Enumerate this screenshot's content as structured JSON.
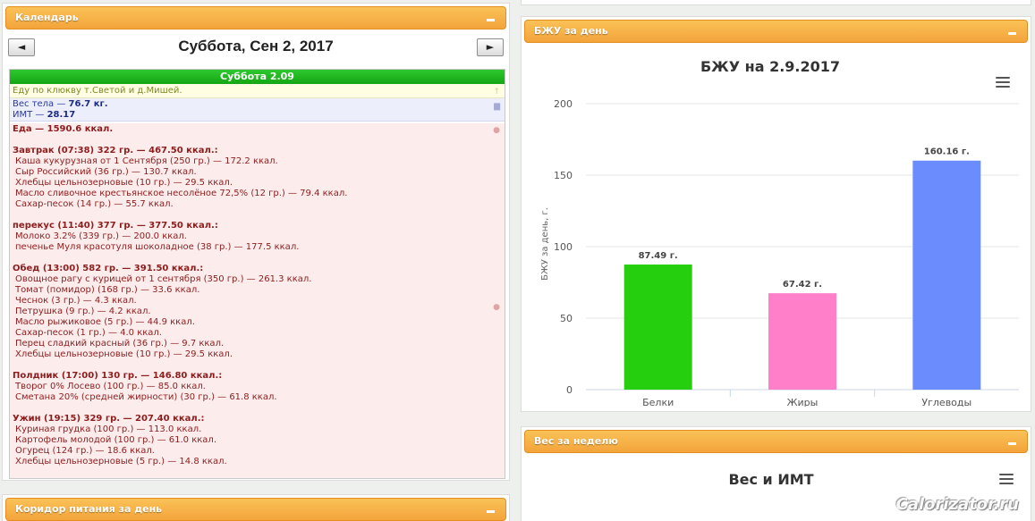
{
  "calendar": {
    "title": "Календарь",
    "prev": "◄",
    "next": "►",
    "date": "Суббота, Сен 2, 2017",
    "day_label": "Суббота 2.09",
    "note": "Еду по клюкву т.Светой и д.Мишей.",
    "weight_label": "Вес тела — ",
    "weight_value": "76.7 кг.",
    "bmi_label": "ИМТ — ",
    "bmi_value": "28.17",
    "food_total": "Еда — 1590.6 ккал.",
    "meals": [
      {
        "title": "Завтрак (07:38) 322 гр. — 467.50 ккал.:",
        "items": [
          "Каша кукурузная от 1 Сентября (250 гр.) — 172.2 ккал.",
          "Сыр Российский (36 гр.) — 130.7 ккал.",
          "Хлебцы цельнозерновые (10 гр.) — 29.5 ккал.",
          "Масло сливочное крестьянское несолёное 72,5% (12 гр.) — 79.4 ккал.",
          "Сахар-песок (14 гр.) — 55.7 ккал."
        ]
      },
      {
        "title": "перекус (11:40) 377 гр. — 377.50 ккал.:",
        "items": [
          "Молоко 3.2% (339 гр.) — 200.0 ккал.",
          "печенье Муля красотуля шоколадное (38 гр.) — 177.5 ккал."
        ]
      },
      {
        "title": "Обед (13:00) 582 гр. — 391.50 ккал.:",
        "items": [
          "Овощное рагу с курицей от 1 сентября (350 гр.) — 261.3 ккал.",
          "Томат (помидор) (168 гр.) — 33.6 ккал.",
          "Чеснок (3 гр.) — 4.3 ккал.",
          "Петрушка (9 гр.) — 4.2 ккал.",
          "Масло рыжиковое (5 гр.) — 44.9 ккал.",
          "Сахар-песок (1 гр.) — 4.0 ккал.",
          "Перец сладкий красный (36 гр.) — 9.7 ккал.",
          "Хлебцы цельнозерновые (10 гр.) — 29.5 ккал."
        ]
      },
      {
        "title": "Полдник (17:00) 130 гр. — 146.80 ккал.:",
        "items": [
          "Творог 0% Лосево (100 гр.) — 85.0 ккал.",
          "Сметана 20% (средней жирности) (30 гр.) — 61.8 ккал."
        ]
      },
      {
        "title": "Ужин (19:15) 329 гр. — 207.40 ккал.:",
        "items": [
          "Куриная грудка (100 гр.) — 113.0 ккал.",
          "Картофель молодой (100 гр.) — 61.0 ккал.",
          "Огурец (124 гр.) — 18.6 ккал.",
          "Хлебцы цельнозерновые (5 гр.) — 14.8 ккал."
        ]
      }
    ]
  },
  "corridor": {
    "title": "Коридор питания за день"
  },
  "bju_panel": {
    "title": "БЖУ за день"
  },
  "weight_panel": {
    "title": "Вес за неделю"
  },
  "chart_data": [
    {
      "type": "bar",
      "title": "БЖУ на 2.9.2017",
      "xlabel": "",
      "ylabel": "БЖУ за день, г.",
      "categories": [
        "Белки",
        "Жиры",
        "Углеводы"
      ],
      "values": [
        87.49,
        67.42,
        160.16
      ],
      "value_labels": [
        "87.49 г.",
        "67.42 г.",
        "160.16 г."
      ],
      "colors": [
        "#26cf0e",
        "#ff80c8",
        "#6b8cfc"
      ],
      "ylim": [
        0,
        200
      ],
      "yticks": [
        0,
        50,
        100,
        150,
        200
      ],
      "grid": true,
      "legend": "none"
    },
    {
      "type": "line",
      "title": "Вес и ИМТ",
      "ytick_visible": "77.5"
    }
  ],
  "watermark": "Calorizator.ru"
}
